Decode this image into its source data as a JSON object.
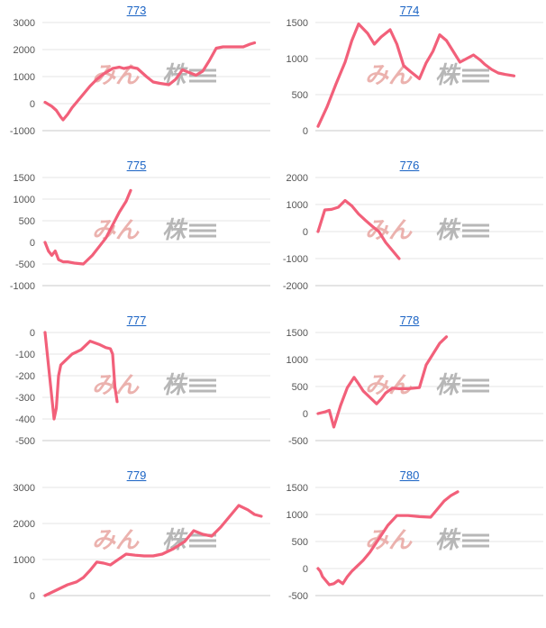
{
  "colors": {
    "line": "#f2607a",
    "grid": "#e6e6e6",
    "axis": "#c8c8c8",
    "title": "#1a63c4",
    "tick": "#555555",
    "watermark_kana": "#e9aaa6",
    "watermark_kanji": "#b0b0b0"
  },
  "watermark": {
    "kana": "みん",
    "kanji": "株"
  },
  "chart_data": [
    {
      "type": "line",
      "title": "773",
      "ylim": [
        -1000,
        3000
      ],
      "yticks": [
        -1000,
        0,
        1000,
        2000,
        3000
      ],
      "xlim": [
        0,
        100
      ],
      "grid": true,
      "x": [
        0,
        3,
        5,
        7,
        8,
        10,
        12,
        15,
        17,
        20,
        23,
        26,
        30,
        33,
        35,
        38,
        41,
        45,
        48,
        51,
        55,
        58,
        61,
        64,
        67,
        70,
        73,
        76,
        79,
        82,
        85,
        88,
        91,
        93
      ],
      "y": [
        50,
        -100,
        -250,
        -500,
        -600,
        -400,
        -150,
        150,
        350,
        650,
        900,
        1100,
        1300,
        1350,
        1300,
        1350,
        1300,
        1000,
        800,
        750,
        700,
        900,
        1250,
        1150,
        1050,
        1200,
        1600,
        2050,
        2100,
        2100,
        2100,
        2100,
        2200,
        2250
      ]
    },
    {
      "type": "line",
      "title": "774",
      "ylim": [
        0,
        1500
      ],
      "yticks": [
        0,
        500,
        1000,
        1500
      ],
      "xlim": [
        0,
        100
      ],
      "grid": true,
      "x": [
        0,
        4,
        8,
        12,
        15,
        18,
        22,
        25,
        28,
        32,
        35,
        38,
        41,
        45,
        48,
        51,
        54,
        57,
        60,
        63,
        66,
        69,
        72,
        74,
        77,
        80,
        83,
        87
      ],
      "y": [
        60,
        330,
        650,
        950,
        1250,
        1480,
        1350,
        1200,
        1300,
        1400,
        1200,
        900,
        820,
        720,
        940,
        1100,
        1330,
        1250,
        1100,
        950,
        1000,
        1050,
        980,
        920,
        850,
        800,
        780,
        760
      ]
    },
    {
      "type": "line",
      "title": "775",
      "ylim": [
        -1000,
        1500
      ],
      "yticks": [
        -1000,
        -500,
        0,
        500,
        1000,
        1500
      ],
      "xlim": [
        0,
        100
      ],
      "grid": true,
      "x": [
        0,
        1.5,
        3,
        4.5,
        6,
        8,
        10,
        13,
        17,
        21,
        24,
        27,
        30,
        33,
        36,
        38
      ],
      "y": [
        0,
        -200,
        -300,
        -200,
        -400,
        -450,
        -450,
        -480,
        -500,
        -300,
        -100,
        100,
        400,
        700,
        950,
        1200
      ]
    },
    {
      "type": "line",
      "title": "776",
      "ylim": [
        -2000,
        2000
      ],
      "yticks": [
        -2000,
        -1000,
        0,
        1000,
        2000
      ],
      "xlim": [
        0,
        100
      ],
      "grid": true,
      "x": [
        0,
        3,
        6,
        9,
        12,
        15,
        18,
        21,
        24,
        27,
        30,
        33,
        36
      ],
      "y": [
        0,
        800,
        820,
        900,
        1150,
        950,
        650,
        420,
        200,
        0,
        -400,
        -700,
        -1000
      ]
    },
    {
      "type": "line",
      "title": "777",
      "ylim": [
        -500,
        0
      ],
      "yticks": [
        -500,
        -400,
        -300,
        -200,
        -100,
        0
      ],
      "xlim": [
        0,
        100
      ],
      "grid": true,
      "x": [
        0,
        1,
        2,
        3,
        4,
        5,
        6,
        7,
        9,
        12,
        16,
        20,
        24,
        27,
        29,
        30,
        31,
        32
      ],
      "y": [
        0,
        -100,
        -200,
        -300,
        -400,
        -350,
        -200,
        -150,
        -130,
        -100,
        -80,
        -40,
        -55,
        -70,
        -75,
        -100,
        -250,
        -320
      ]
    },
    {
      "type": "line",
      "title": "778",
      "ylim": [
        -500,
        1500
      ],
      "yticks": [
        -500,
        0,
        500,
        1000,
        1500
      ],
      "xlim": [
        0,
        100
      ],
      "grid": true,
      "x": [
        0,
        3,
        5,
        7,
        10,
        13,
        16,
        18,
        20,
        23,
        26,
        28,
        30,
        33,
        36,
        40,
        45,
        48,
        51,
        54,
        57
      ],
      "y": [
        0,
        30,
        60,
        -250,
        150,
        480,
        670,
        550,
        420,
        300,
        180,
        270,
        380,
        470,
        460,
        460,
        480,
        900,
        1100,
        1300,
        1420
      ]
    },
    {
      "type": "line",
      "title": "779",
      "ylim": [
        0,
        3000
      ],
      "yticks": [
        0,
        1000,
        2000,
        3000
      ],
      "xlim": [
        0,
        100
      ],
      "grid": true,
      "x": [
        0,
        5,
        10,
        14,
        17,
        20,
        23,
        26,
        29,
        32,
        36,
        40,
        44,
        48,
        52,
        57,
        62,
        66,
        70,
        74,
        78,
        82,
        86,
        90,
        93,
        96
      ],
      "y": [
        0,
        150,
        300,
        380,
        500,
        700,
        930,
        900,
        850,
        980,
        1150,
        1120,
        1100,
        1100,
        1150,
        1300,
        1500,
        1800,
        1700,
        1650,
        1900,
        2200,
        2500,
        2380,
        2250,
        2200
      ]
    },
    {
      "type": "line",
      "title": "780",
      "ylim": [
        -500,
        1500
      ],
      "yticks": [
        -500,
        0,
        500,
        1000,
        1500
      ],
      "xlim": [
        0,
        100
      ],
      "grid": true,
      "x": [
        0,
        1,
        2,
        3,
        5,
        7,
        9,
        11,
        13,
        15,
        17,
        20,
        23,
        27,
        31,
        35,
        40,
        45,
        50,
        53,
        56,
        59,
        62
      ],
      "y": [
        0,
        -50,
        -150,
        -200,
        -300,
        -280,
        -220,
        -280,
        -150,
        -50,
        30,
        150,
        300,
        550,
        800,
        980,
        980,
        960,
        950,
        1100,
        1250,
        1350,
        1420
      ]
    }
  ]
}
